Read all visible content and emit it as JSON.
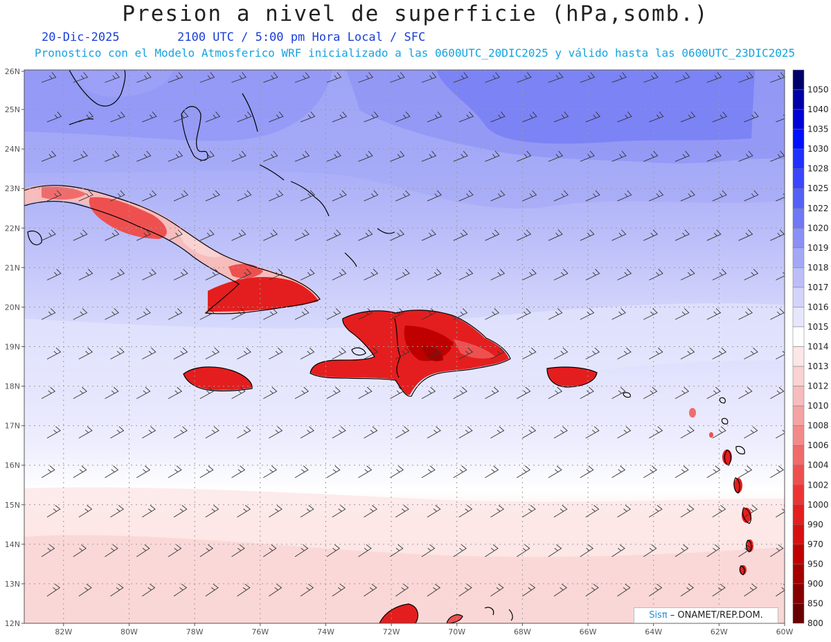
{
  "header": {
    "title": "Presion a nivel de superficie (hPa,somb.)",
    "date": "20-Dic-2025",
    "time_info": "2100 UTC / 5:00 pm Hora Local / SFC",
    "subtitle": "Pronostico con el Modelo Atmosferico WRF inicializado a las 0600UTC_20DIC2025 y válido hasta las  0600UTC_23DIC2025"
  },
  "axes": {
    "lat_labels": [
      "26N",
      "25N",
      "24N",
      "23N",
      "22N",
      "21N",
      "20N",
      "19N",
      "18N",
      "17N",
      "16N",
      "15N",
      "14N",
      "13N",
      "12N"
    ],
    "lon_labels": [
      "82W",
      "80W",
      "78W",
      "76W",
      "74W",
      "72W",
      "70W",
      "68W",
      "66W",
      "64W",
      "62W",
      "60W"
    ],
    "lat_range": [
      12,
      26
    ],
    "lon_range": [
      -83.2,
      -60
    ]
  },
  "legend": {
    "levels": [
      {
        "label": "1050",
        "color": "#00006a"
      },
      {
        "label": "1040",
        "color": "#0000a8"
      },
      {
        "label": "1035",
        "color": "#0000d8"
      },
      {
        "label": "1030",
        "color": "#0010ff"
      },
      {
        "label": "1028",
        "color": "#2030ff"
      },
      {
        "label": "1025",
        "color": "#3a46ff"
      },
      {
        "label": "1022",
        "color": "#5560f5"
      },
      {
        "label": "1020",
        "color": "#6f78f5"
      },
      {
        "label": "1019",
        "color": "#8a90f5"
      },
      {
        "label": "1018",
        "color": "#a3a8f7"
      },
      {
        "label": "1017",
        "color": "#bbbef9"
      },
      {
        "label": "1016",
        "color": "#d2d4fb"
      },
      {
        "label": "1015",
        "color": "#e6e7fd"
      },
      {
        "label": "1014",
        "color": "#ffffff"
      },
      {
        "label": "1013",
        "color": "#fde6e6"
      },
      {
        "label": "1012",
        "color": "#fad2d2"
      },
      {
        "label": "1010",
        "color": "#f7bcbc"
      },
      {
        "label": "1008",
        "color": "#f5a3a3"
      },
      {
        "label": "1006",
        "color": "#f38a8a"
      },
      {
        "label": "1004",
        "color": "#f06c6c"
      },
      {
        "label": "1002",
        "color": "#ee5050"
      },
      {
        "label": "1000",
        "color": "#eb3535"
      },
      {
        "label": "990",
        "color": "#e41e1e"
      },
      {
        "label": "970",
        "color": "#d61010"
      },
      {
        "label": "950",
        "color": "#c00000"
      },
      {
        "label": "900",
        "color": "#a40000"
      },
      {
        "label": "850",
        "color": "#870000"
      },
      {
        "label": "800",
        "color": "#680000"
      }
    ]
  },
  "credit": {
    "brand": "Sisπ",
    "text": " – ONAMET/REP.DOM."
  }
}
